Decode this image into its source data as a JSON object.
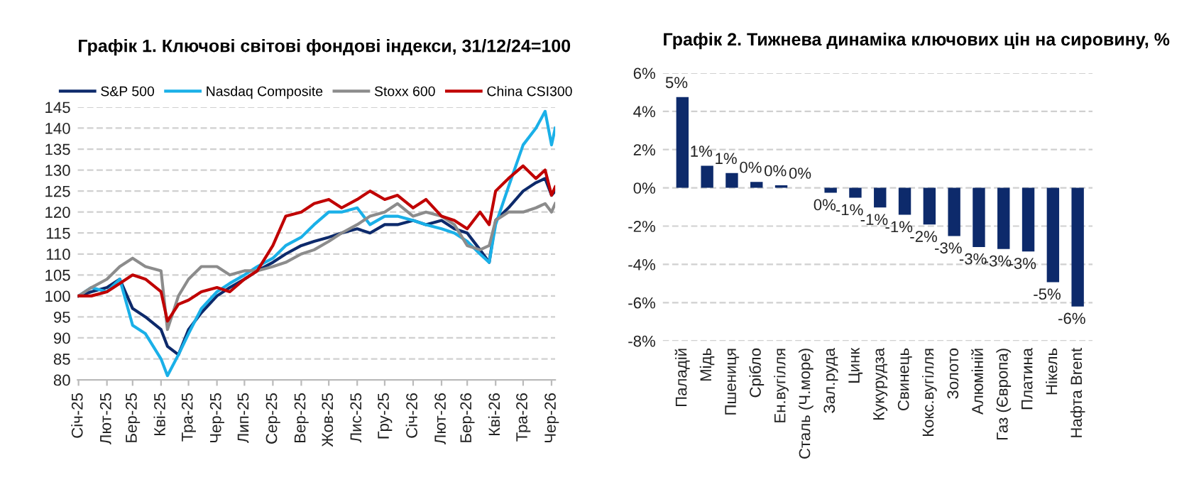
{
  "chart_data": [
    {
      "type": "line",
      "title": "Графік 1. Ключові світові фондові індекси, 31/12/24=100",
      "x": [
        "2025-01-01",
        "2025-01-15",
        "2025-02-01",
        "2025-02-15",
        "2025-03-01",
        "2025-03-15",
        "2025-04-01",
        "2025-04-08",
        "2025-04-20",
        "2025-05-01",
        "2025-05-15",
        "2025-06-01",
        "2025-06-15",
        "2025-07-01",
        "2025-07-15",
        "2025-08-01",
        "2025-08-15",
        "2025-09-01",
        "2025-09-15",
        "2025-10-01",
        "2025-10-15",
        "2025-11-01",
        "2025-11-15",
        "2025-12-01",
        "2025-12-15",
        "2026-01-01",
        "2026-01-15",
        "2026-02-01",
        "2026-02-15",
        "2026-03-01",
        "2026-03-15",
        "2026-03-25",
        "2026-04-01",
        "2026-04-15",
        "2026-05-01",
        "2026-05-15",
        "2026-05-25",
        "2026-06-01",
        "2026-06-05"
      ],
      "series": [
        {
          "name": "S&P 500",
          "color": "#0d2a6b",
          "values": [
            100,
            101,
            102,
            104,
            97,
            95,
            92,
            88,
            86,
            92,
            96,
            100,
            102,
            104,
            106,
            108,
            110,
            112,
            113,
            114,
            115,
            116,
            115,
            117,
            117,
            118,
            117,
            118,
            116,
            115,
            111,
            108,
            118,
            121,
            125,
            127,
            128,
            124,
            125
          ]
        },
        {
          "name": "Nasdaq Composite",
          "color": "#1ab0e8",
          "values": [
            100,
            102,
            101,
            104,
            93,
            91,
            85,
            81,
            86,
            91,
            97,
            101,
            103,
            105,
            107,
            109,
            112,
            114,
            117,
            120,
            120,
            121,
            117,
            119,
            119,
            118,
            117,
            116,
            115,
            113,
            110,
            108,
            117,
            126,
            136,
            140,
            144,
            136,
            140
          ]
        },
        {
          "name": "Stoxx 600",
          "color": "#8c8c8c",
          "values": [
            100,
            102,
            104,
            107,
            109,
            107,
            106,
            92,
            100,
            104,
            107,
            107,
            105,
            106,
            106,
            107,
            108,
            110,
            111,
            113,
            115,
            117,
            119,
            120,
            122,
            119,
            120,
            119,
            117,
            112,
            111,
            112,
            118,
            120,
            120,
            121,
            122,
            120,
            122
          ]
        },
        {
          "name": "China CSI300",
          "color": "#c00000",
          "values": [
            100,
            100,
            101,
            103,
            105,
            104,
            101,
            94,
            98,
            99,
            101,
            102,
            101,
            104,
            106,
            112,
            119,
            120,
            122,
            123,
            121,
            123,
            125,
            123,
            124,
            121,
            123,
            119,
            118,
            116,
            120,
            117,
            125,
            128,
            131,
            128,
            130,
            124,
            126
          ]
        }
      ],
      "xlim": [
        "2024-12-31",
        "2026-06-05"
      ],
      "xticks": [
        {
          "value": "2025-01-01",
          "label": "Січ-25"
        },
        {
          "value": "2025-02-01",
          "label": "Лют-25"
        },
        {
          "value": "2025-03-01",
          "label": "Бер-25"
        },
        {
          "value": "2025-04-01",
          "label": "Кві-25"
        },
        {
          "value": "2025-05-01",
          "label": "Тра-25"
        },
        {
          "value": "2025-06-01",
          "label": "Чер-25"
        },
        {
          "value": "2025-07-01",
          "label": "Лип-25"
        },
        {
          "value": "2025-08-01",
          "label": "Сер-25"
        },
        {
          "value": "2025-09-01",
          "label": "Вер-25"
        },
        {
          "value": "2025-10-01",
          "label": "Жов-25"
        },
        {
          "value": "2025-11-01",
          "label": "Лис-25"
        },
        {
          "value": "2025-12-01",
          "label": "Гру-25"
        },
        {
          "value": "2026-01-01",
          "label": "Січ-26"
        },
        {
          "value": "2026-02-01",
          "label": "Лют-26"
        },
        {
          "value": "2026-03-01",
          "label": "Бер-26"
        },
        {
          "value": "2026-04-01",
          "label": "Кві-26"
        },
        {
          "value": "2026-05-01",
          "label": "Тра-26"
        },
        {
          "value": "2026-06-01",
          "label": "Чер-26"
        }
      ],
      "ylim": [
        80,
        145
      ],
      "yticks": [
        80,
        85,
        90,
        95,
        100,
        105,
        110,
        115,
        120,
        125,
        130,
        135,
        140,
        145
      ],
      "grid": "y",
      "legend": "top",
      "line_style": "solid"
    },
    {
      "type": "bar",
      "title": "Графік 2. Тижнева динаміка ключових цін на сировину, %",
      "categories": [
        "Паладій",
        "Мідь",
        "Пшениця",
        "Срібло",
        "Ен.вугілля",
        "Сталь (Ч.море)",
        "Зал.руда",
        "Цинк",
        "Кукурудза",
        "Свинець",
        "Кокс.вугілля",
        "Золото",
        "Алюміній",
        "Газ (Європа)",
        "Платина",
        "Нікель",
        "Нафта Brent"
      ],
      "values": [
        4.74,
        1.15,
        0.77,
        0.31,
        0.13,
        0,
        -0.26,
        -0.52,
        -1.03,
        -1.41,
        -1.92,
        -2.52,
        -3.09,
        -3.2,
        -3.33,
        -4.93,
        -6.2
      ],
      "value_labels": [
        "5%",
        "1%",
        "1%",
        "0%",
        "0%",
        "0%",
        "0%",
        "-1%",
        "-1%",
        "-1%",
        "-2%",
        "-3%",
        "-3%",
        "-3%",
        "-3%",
        "-5%",
        "-6%"
      ],
      "color": "#0d2a6b",
      "ylim": [
        -8,
        6
      ],
      "yticks": [
        {
          "value": -8,
          "label": "-8%"
        },
        {
          "value": -6,
          "label": "-6%"
        },
        {
          "value": -4,
          "label": "-4%"
        },
        {
          "value": -2,
          "label": "-2%"
        },
        {
          "value": 0,
          "label": "0%"
        },
        {
          "value": 2,
          "label": "2%"
        },
        {
          "value": 4,
          "label": "4%"
        },
        {
          "value": 6,
          "label": "6%"
        }
      ],
      "grid": "y",
      "legend": false
    }
  ]
}
